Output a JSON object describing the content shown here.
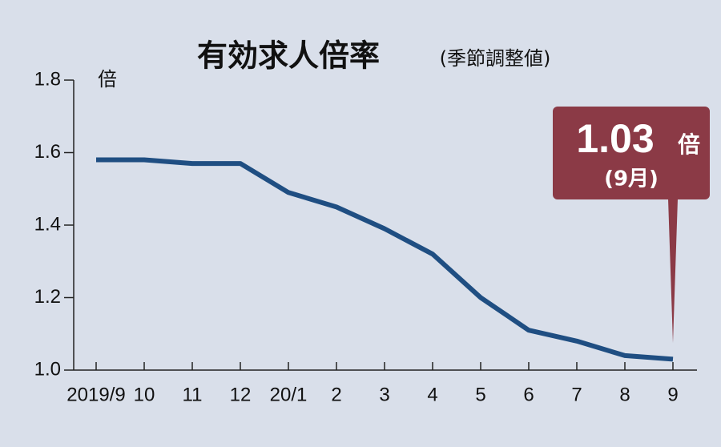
{
  "chart_data": {
    "type": "line",
    "title": "有効求人倍率",
    "subtitle": "(季節調整値)",
    "y_unit": "倍",
    "categories": [
      "2019/9",
      "10",
      "11",
      "12",
      "20/1",
      "2",
      "3",
      "4",
      "5",
      "6",
      "7",
      "8",
      "9"
    ],
    "values": [
      1.58,
      1.58,
      1.57,
      1.57,
      1.49,
      1.45,
      1.39,
      1.32,
      1.2,
      1.11,
      1.08,
      1.04,
      1.03
    ],
    "color": "#1f4e82",
    "ylim": [
      1,
      1.8
    ],
    "yticks": [
      {
        "value": 1,
        "label": "1.0"
      },
      1.2,
      1.4,
      1.6,
      1.8
    ],
    "annotation": {
      "unit": "倍",
      "note": "(9月)",
      "color": "#8b3a46"
    }
  }
}
